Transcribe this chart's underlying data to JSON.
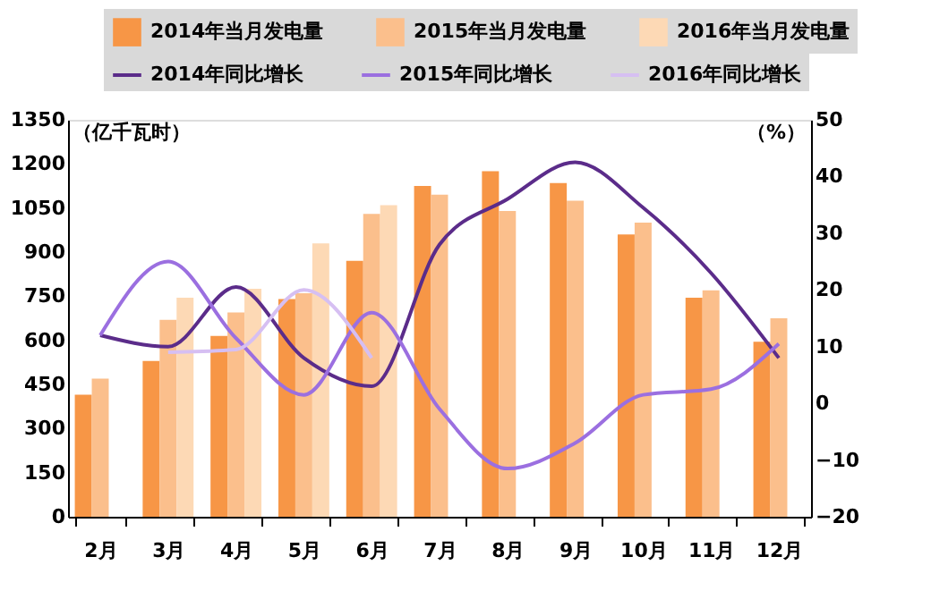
{
  "chart_data": {
    "type": "bar",
    "ylabel": "（亿千瓦时）",
    "y2label": "（%）",
    "categories": [
      "2月",
      "3月",
      "4月",
      "5月",
      "6月",
      "7月",
      "8月",
      "9月",
      "10月",
      "11月",
      "12月"
    ],
    "series": [
      {
        "name": "2014年当月发电量",
        "color": "#f79646",
        "values": [
          415,
          530,
          615,
          740,
          870,
          1125,
          1175,
          1135,
          960,
          745,
          595
        ]
      },
      {
        "name": "2015年当月发电量",
        "color": "#fbbf8c",
        "values": [
          470,
          670,
          695,
          760,
          1030,
          1095,
          1040,
          1075,
          1000,
          770,
          675
        ]
      },
      {
        "name": "2016年当月发电量",
        "color": "#fdd9b5",
        "values": [
          null,
          745,
          775,
          930,
          1060,
          null,
          null,
          null,
          null,
          null,
          null
        ]
      },
      {
        "name": "2014年同比增长",
        "type": "line",
        "axis": "y2",
        "color": "#5b2c8a",
        "values": [
          12,
          10,
          20.5,
          8,
          3,
          28,
          36,
          42.5,
          34.5,
          23,
          8
        ]
      },
      {
        "name": "2015年同比增长",
        "type": "line",
        "axis": "y2",
        "color": "#9b6fe0",
        "values": [
          12,
          25,
          11.5,
          1.5,
          16,
          -1,
          -11.5,
          -7,
          1.5,
          2.5,
          10.5
        ]
      },
      {
        "name": "2016年同比增长",
        "type": "line",
        "axis": "y2",
        "color": "#d6bff2",
        "values": [
          null,
          9,
          9.5,
          20,
          8,
          null,
          null,
          null,
          null,
          null,
          null
        ]
      }
    ],
    "ylim": [
      0,
      1350
    ],
    "yticks": [
      0,
      150,
      300,
      450,
      600,
      750,
      900,
      1050,
      1200,
      1350
    ],
    "y2lim": [
      -20,
      50
    ],
    "y2ticks": [
      -20,
      -10,
      0,
      10,
      20,
      30,
      40,
      50
    ],
    "grid": false,
    "legend": "top"
  }
}
